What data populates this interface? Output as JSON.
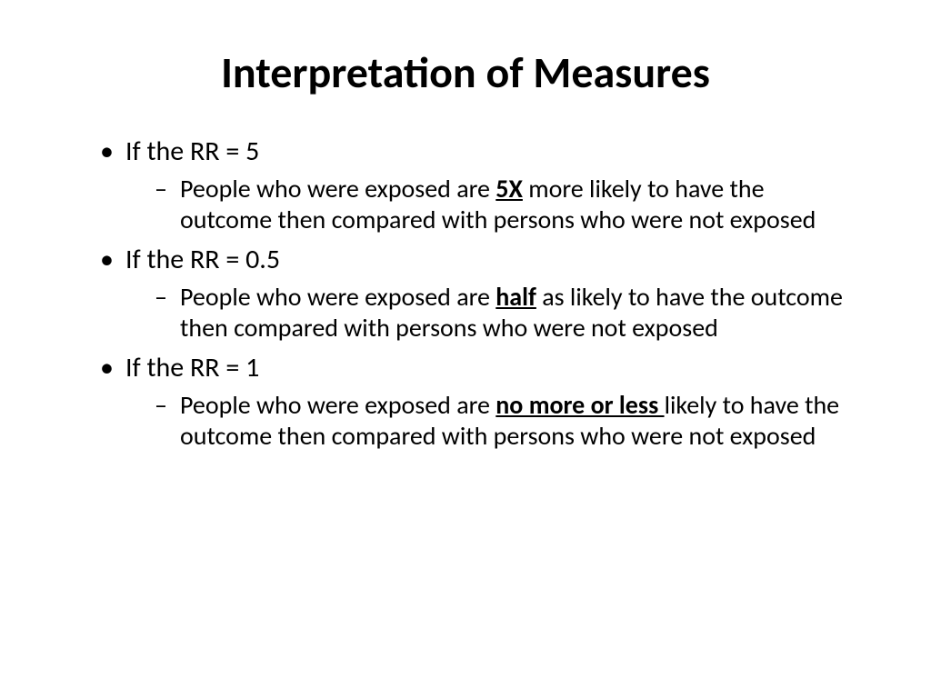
{
  "slide": {
    "title": "Interpretation of Measures",
    "background_color": "#ffffff",
    "text_color": "#000000",
    "font_family": "Calibri",
    "title_fontsize": 48,
    "main_bullet_fontsize": 30,
    "sub_bullet_fontsize": 28,
    "items": [
      {
        "main": "If the RR = 5",
        "sub_pre": "People who were exposed are ",
        "sub_em": "5X",
        "sub_post": " more likely to have the outcome then compared with persons who were not exposed"
      },
      {
        "main": "If the RR = 0.5",
        "sub_pre": "People who were exposed are ",
        "sub_em": "half",
        "sub_post": " as likely to have the outcome then compared with persons who were not exposed"
      },
      {
        "main": "If the RR = 1",
        "sub_pre": "People who were exposed are ",
        "sub_em": "no more or less ",
        "sub_post": "likely to have the outcome then compared with persons who who were not exposed"
      }
    ]
  }
}
